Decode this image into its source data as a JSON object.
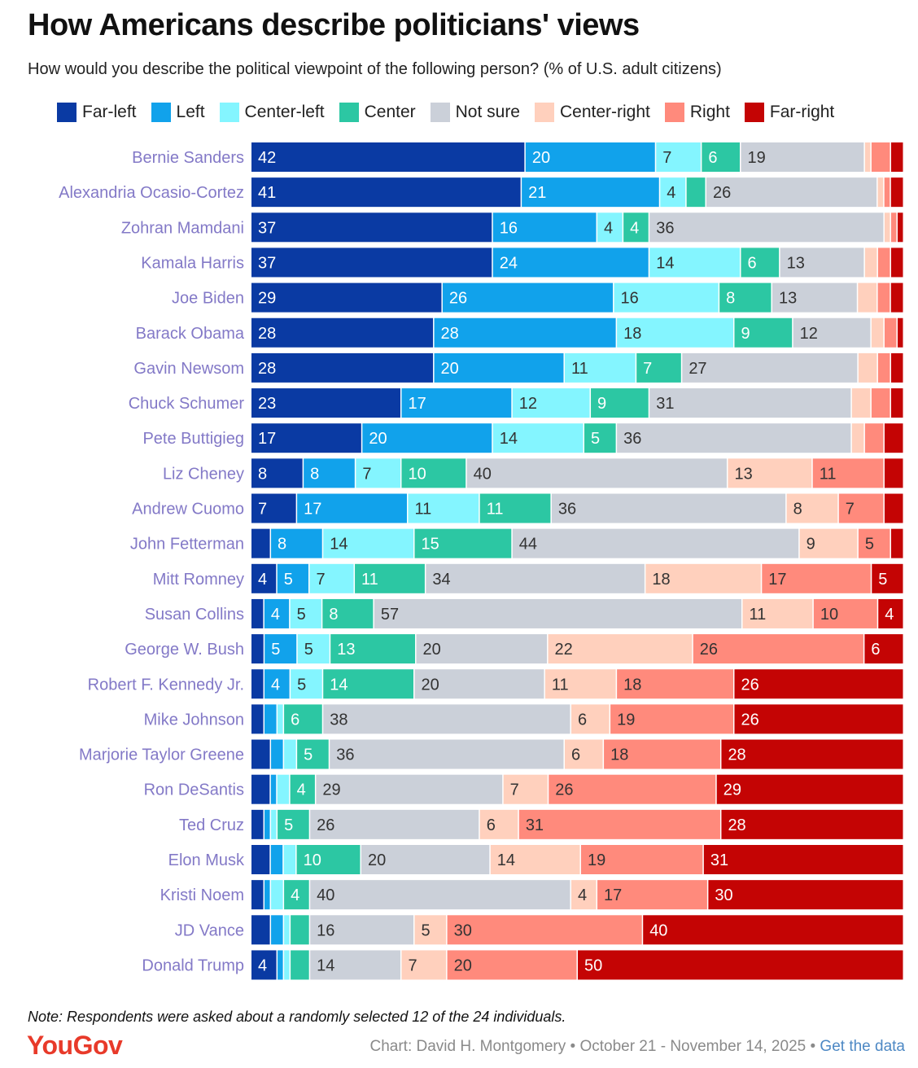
{
  "title": "How Americans describe politicians' views",
  "subtitle": "How would you describe the political viewpoint of the following person? (% of U.S. adult citizens)",
  "note": "Note: Respondents were asked about a randomly selected 12 of the 24 individuals.",
  "brand": "YouGov",
  "credit": {
    "text": "Chart: David H. Montgomery • October 21 - November 14, 2025 •",
    "link": "Get the data"
  },
  "colors": {
    "label_text": "#8379c7",
    "brand": "#e83a2a",
    "link": "#4d88c4"
  },
  "chart_data": {
    "type": "bar",
    "orientation": "horizontal-stacked",
    "xlim": [
      0,
      100
    ],
    "legend_position": "top",
    "series": [
      {
        "name": "Far-left",
        "color": "#0a3aa3"
      },
      {
        "name": "Left",
        "color": "#11a2eb"
      },
      {
        "name": "Center-left",
        "color": "#84f5ff"
      },
      {
        "name": "Center",
        "color": "#2cc7a3"
      },
      {
        "name": "Not sure",
        "color": "#cbd0d9"
      },
      {
        "name": "Center-right",
        "color": "#ffd0bd"
      },
      {
        "name": "Right",
        "color": "#ff8a7c"
      },
      {
        "name": "Far-right",
        "color": "#c40404"
      }
    ],
    "categories": [
      "Bernie Sanders",
      "Alexandria Ocasio-Cortez",
      "Zohran Mamdani",
      "Kamala Harris",
      "Joe Biden",
      "Barack Obama",
      "Gavin Newsom",
      "Chuck Schumer",
      "Pete Buttigieg",
      "Liz Cheney",
      "Andrew Cuomo",
      "John Fetterman",
      "Mitt Romney",
      "Susan Collins",
      "George W. Bush",
      "Robert F. Kennedy Jr.",
      "Mike Johnson",
      "Marjorie Taylor Greene",
      "Ron DeSantis",
      "Ted Cruz",
      "Elon Musk",
      "Kristi Noem",
      "JD Vance",
      "Donald Trump"
    ],
    "values": [
      [
        42,
        20,
        7,
        6,
        19,
        1,
        3,
        2
      ],
      [
        41,
        21,
        4,
        3,
        26,
        1,
        1,
        2
      ],
      [
        37,
        16,
        4,
        4,
        36,
        1,
        1,
        1
      ],
      [
        37,
        24,
        14,
        6,
        13,
        2,
        2,
        2
      ],
      [
        29,
        26,
        16,
        8,
        13,
        3,
        2,
        2
      ],
      [
        28,
        28,
        18,
        9,
        12,
        2,
        2,
        1
      ],
      [
        28,
        20,
        11,
        7,
        27,
        3,
        2,
        2
      ],
      [
        23,
        17,
        12,
        9,
        31,
        3,
        3,
        2
      ],
      [
        17,
        20,
        14,
        5,
        36,
        2,
        3,
        3
      ],
      [
        8,
        8,
        7,
        10,
        40,
        13,
        11,
        3
      ],
      [
        7,
        17,
        11,
        11,
        36,
        8,
        7,
        3
      ],
      [
        3,
        8,
        14,
        15,
        44,
        9,
        5,
        2
      ],
      [
        4,
        5,
        7,
        11,
        34,
        18,
        17,
        5
      ],
      [
        2,
        4,
        5,
        8,
        57,
        11,
        10,
        4
      ],
      [
        2,
        5,
        5,
        13,
        20,
        22,
        26,
        6
      ],
      [
        2,
        4,
        5,
        14,
        20,
        11,
        18,
        26
      ],
      [
        2,
        2,
        1,
        6,
        38,
        6,
        19,
        26
      ],
      [
        3,
        2,
        2,
        5,
        36,
        6,
        18,
        28
      ],
      [
        3,
        1,
        2,
        4,
        29,
        7,
        26,
        29
      ],
      [
        2,
        1,
        1,
        5,
        26,
        6,
        31,
        28
      ],
      [
        3,
        2,
        2,
        10,
        20,
        14,
        19,
        31
      ],
      [
        2,
        1,
        2,
        4,
        40,
        4,
        17,
        30
      ],
      [
        3,
        2,
        1,
        3,
        16,
        5,
        30,
        40
      ],
      [
        4,
        1,
        1,
        3,
        14,
        7,
        20,
        50
      ]
    ],
    "label_threshold": 4
  }
}
